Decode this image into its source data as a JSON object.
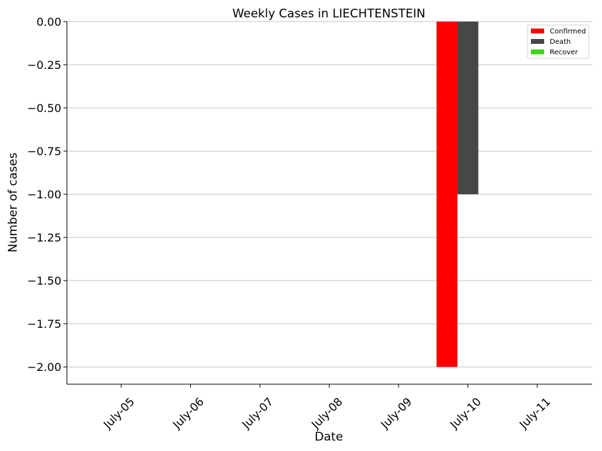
{
  "chart_data": {
    "type": "bar",
    "title": "Weekly Cases in LIECHTENSTEIN",
    "xlabel": "Date",
    "ylabel": "Number of cases",
    "categories": [
      "July-05",
      "July-06",
      "July-07",
      "July-08",
      "July-09",
      "July-10",
      "July-11"
    ],
    "series": [
      {
        "name": "Confirmed",
        "color": "#ff0000",
        "values": [
          0,
          0,
          0,
          0,
          0,
          -2,
          0
        ]
      },
      {
        "name": "Death",
        "color": "#474747",
        "values": [
          0,
          0,
          0,
          0,
          0,
          -1,
          0
        ]
      },
      {
        "name": "Recover",
        "color": "#3ed61a",
        "values": [
          0,
          0,
          0,
          0,
          0,
          0,
          0
        ]
      }
    ],
    "ylim": [
      -2.1,
      0
    ],
    "yticks": [
      "0.00",
      "−0.25",
      "−0.50",
      "−0.75",
      "−1.00",
      "−1.25",
      "−1.50",
      "−1.75",
      "−2.00"
    ],
    "grid": "horizontal",
    "legend_position": "top-right"
  }
}
